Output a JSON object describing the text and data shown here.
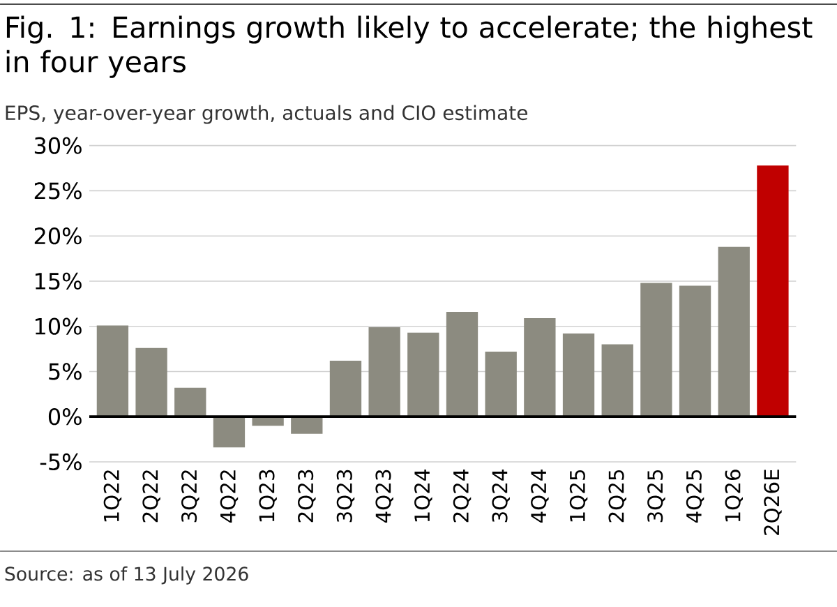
{
  "chart_data": {
    "type": "bar",
    "title": "Fig. 1: Earnings growth likely to accelerate; the highest in four years",
    "subtitle": "EPS, year-over-year growth, actuals and CIO estimate",
    "categories": [
      "1Q22",
      "2Q22",
      "3Q22",
      "4Q22",
      "1Q23",
      "2Q23",
      "3Q23",
      "4Q23",
      "1Q24",
      "2Q24",
      "3Q24",
      "4Q24",
      "1Q25",
      "2Q25",
      "3Q25",
      "4Q25",
      "1Q26",
      "2Q26E"
    ],
    "values": [
      10.1,
      7.6,
      3.2,
      -3.4,
      -1.0,
      -1.9,
      6.2,
      9.9,
      9.3,
      11.6,
      7.2,
      10.9,
      9.2,
      8.0,
      14.8,
      14.5,
      18.8,
      27.8
    ],
    "colors": [
      "#8c8b80",
      "#8c8b80",
      "#8c8b80",
      "#8c8b80",
      "#8c8b80",
      "#8c8b80",
      "#8c8b80",
      "#8c8b80",
      "#8c8b80",
      "#8c8b80",
      "#8c8b80",
      "#8c8b80",
      "#8c8b80",
      "#8c8b80",
      "#8c8b80",
      "#8c8b80",
      "#8c8b80",
      "#c00000"
    ],
    "ylim": [
      -5,
      30
    ],
    "yticks": [
      {
        "value": -5,
        "label": "-5%"
      },
      {
        "value": 0,
        "label": "0%"
      },
      {
        "value": 5,
        "label": "5%"
      },
      {
        "value": 10,
        "label": "10%"
      },
      {
        "value": 15,
        "label": "15%"
      },
      {
        "value": 20,
        "label": "20%"
      },
      {
        "value": 25,
        "label": "25%"
      },
      {
        "value": 30,
        "label": "30%"
      }
    ],
    "grid": "y",
    "annotations": [
      "Source: as of 13 July 2026"
    ]
  }
}
